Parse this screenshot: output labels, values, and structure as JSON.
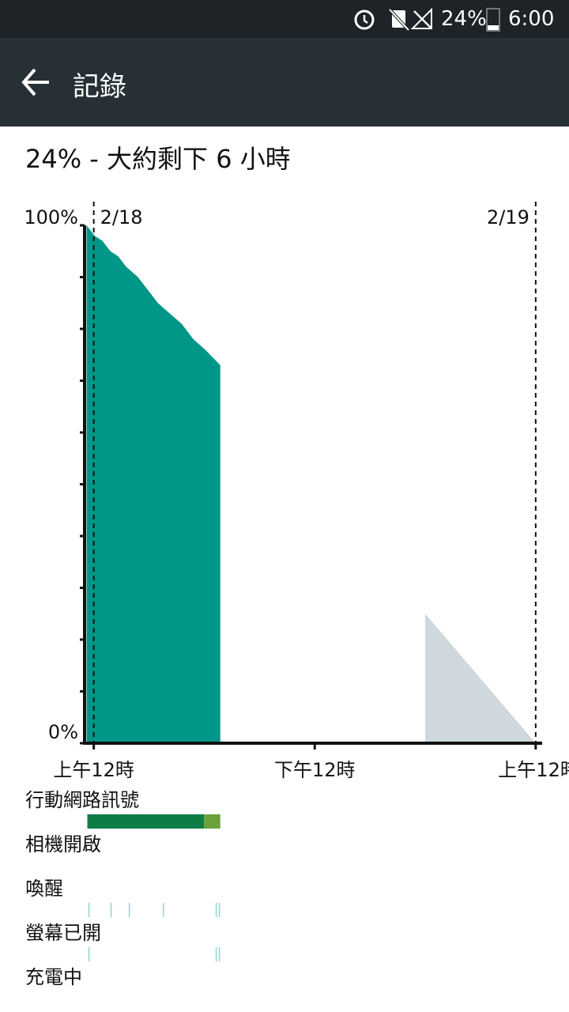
{
  "status_bar": {
    "battery": "24%",
    "time": "6:00"
  },
  "app_bar": {
    "title": "記錄"
  },
  "summary": "24% - 大約剩下 6 小時",
  "chart_data": {
    "type": "area",
    "xlim": [
      -0.5,
      24.35
    ],
    "ylim": [
      0,
      100
    ],
    "yticks": [
      {
        "value": 0,
        "label": "0%"
      },
      {
        "value": 100,
        "label": "100%"
      }
    ],
    "yminor": [
      10,
      20,
      30,
      40,
      50,
      60,
      70,
      80,
      90
    ],
    "xticks": [
      {
        "value": 0,
        "label": "上午12時"
      },
      {
        "value": 12,
        "label": "下午12時"
      },
      {
        "value": 24,
        "label": "上午12時"
      }
    ],
    "date_markers": [
      {
        "value": 0,
        "label": "2/18"
      },
      {
        "value": 24,
        "label": "2/19"
      }
    ],
    "series": [
      {
        "color": "#009688",
        "x": [
          -0.39,
          0.04,
          0.47,
          0.9,
          1.33,
          1.76,
          2.4,
          3.05,
          3.48,
          4.12,
          4.77,
          5.41,
          6.05,
          6.87
        ],
        "values": [
          100,
          98,
          97,
          95,
          94,
          92,
          90,
          87,
          85,
          83,
          81,
          78,
          76,
          73
        ]
      },
      {
        "color": "#cfd8dc",
        "x": [
          18,
          24
        ],
        "values": [
          25,
          0
        ]
      }
    ]
  },
  "tracks": [
    {
      "label": "行動網路訊號",
      "segments": [
        {
          "start": -0.35,
          "end": 5.99,
          "color": "#0e7d45"
        },
        {
          "start": 5.99,
          "end": 6.87,
          "color": "#6aa339"
        }
      ],
      "events": []
    },
    {
      "label": "相機開啟",
      "segments": [],
      "events": []
    },
    {
      "label": "喚醒",
      "segments": [],
      "events": [
        -0.26,
        0.94,
        1.93,
        3.78,
        6.65,
        6.82
      ]
    },
    {
      "label": "螢幕已開",
      "segments": [],
      "events": [
        -0.26,
        6.65,
        6.82
      ]
    },
    {
      "label": "充電中",
      "segments": [],
      "events": []
    }
  ]
}
